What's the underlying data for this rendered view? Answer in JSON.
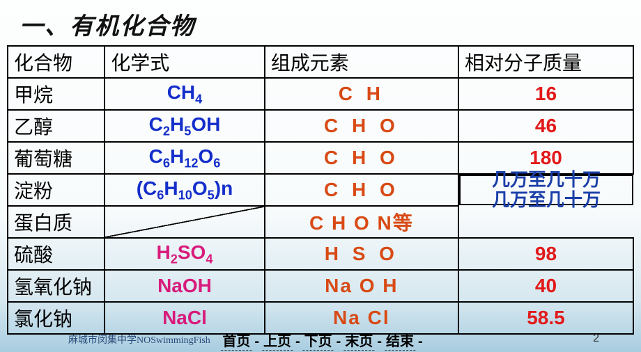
{
  "title": "一、有机化合物",
  "headers": {
    "c1": "化合物",
    "c2": "化学式",
    "c3": "组成元素",
    "c4": "相对分子质量"
  },
  "rows": [
    {
      "name": "甲烷",
      "formula_html": "CH<sub>4</sub>",
      "formula_color": "blue",
      "elements": "C  H",
      "elements_color": "orange",
      "mass": "16",
      "mass_color": "red"
    },
    {
      "name": "乙醇",
      "formula_html": "C<sub>2</sub>H<sub>5</sub>OH",
      "formula_color": "blue",
      "elements": "C  H  O",
      "elements_color": "orange",
      "mass": "46",
      "mass_color": "red"
    },
    {
      "name": "葡萄糖",
      "formula_html": "C<sub>6</sub>H<sub>12</sub>O<sub>6</sub>",
      "formula_color": "blue",
      "elements": "C  H  O",
      "elements_color": "orange",
      "mass": "180",
      "mass_color": "red"
    },
    {
      "name": "淀粉",
      "formula_html": "(C<sub>6</sub>H<sub>10</sub>O<sub>5</sub>)n",
      "formula_color": "blue",
      "elements": "C  H  O",
      "elements_color": "orange"
    },
    {
      "name": "蛋白质",
      "formula_html": "",
      "elements": "C H O N等",
      "elements_color": "orange"
    },
    {
      "name": "硫酸",
      "formula_html": "H<sub>2</sub>SO<sub>4</sub>",
      "formula_color": "magenta",
      "elements": "H   S   O",
      "elements_color": "orange",
      "mass": "98",
      "mass_color": "red"
    },
    {
      "name": "氢氧化钠",
      "formula_html": "NaOH",
      "formula_color": "magenta",
      "elements": "Na   O  H",
      "elements_color": "orange",
      "mass": "40",
      "mass_color": "red"
    },
    {
      "name": "氯化钠",
      "formula_html": "NaCl",
      "formula_color": "magenta",
      "elements": "Na    Cl",
      "elements_color": "orange",
      "mass": "58.5",
      "mass_color": "red"
    }
  ],
  "merged_mass": {
    "line1": "几万至几十万",
    "line2": "几万至几十万",
    "color": "navyblue"
  },
  "footer": {
    "credit": "麻城市闵集中学NOSwimmingFish",
    "nav": [
      "首页",
      "上页",
      "下页",
      "末页",
      "结束"
    ],
    "page": "2"
  },
  "colors": {
    "blue": "#132ec9",
    "orange": "#d84a15",
    "red": "#e21a1a",
    "magenta": "#d81b7b",
    "navyblue": "#1a3fa8"
  }
}
